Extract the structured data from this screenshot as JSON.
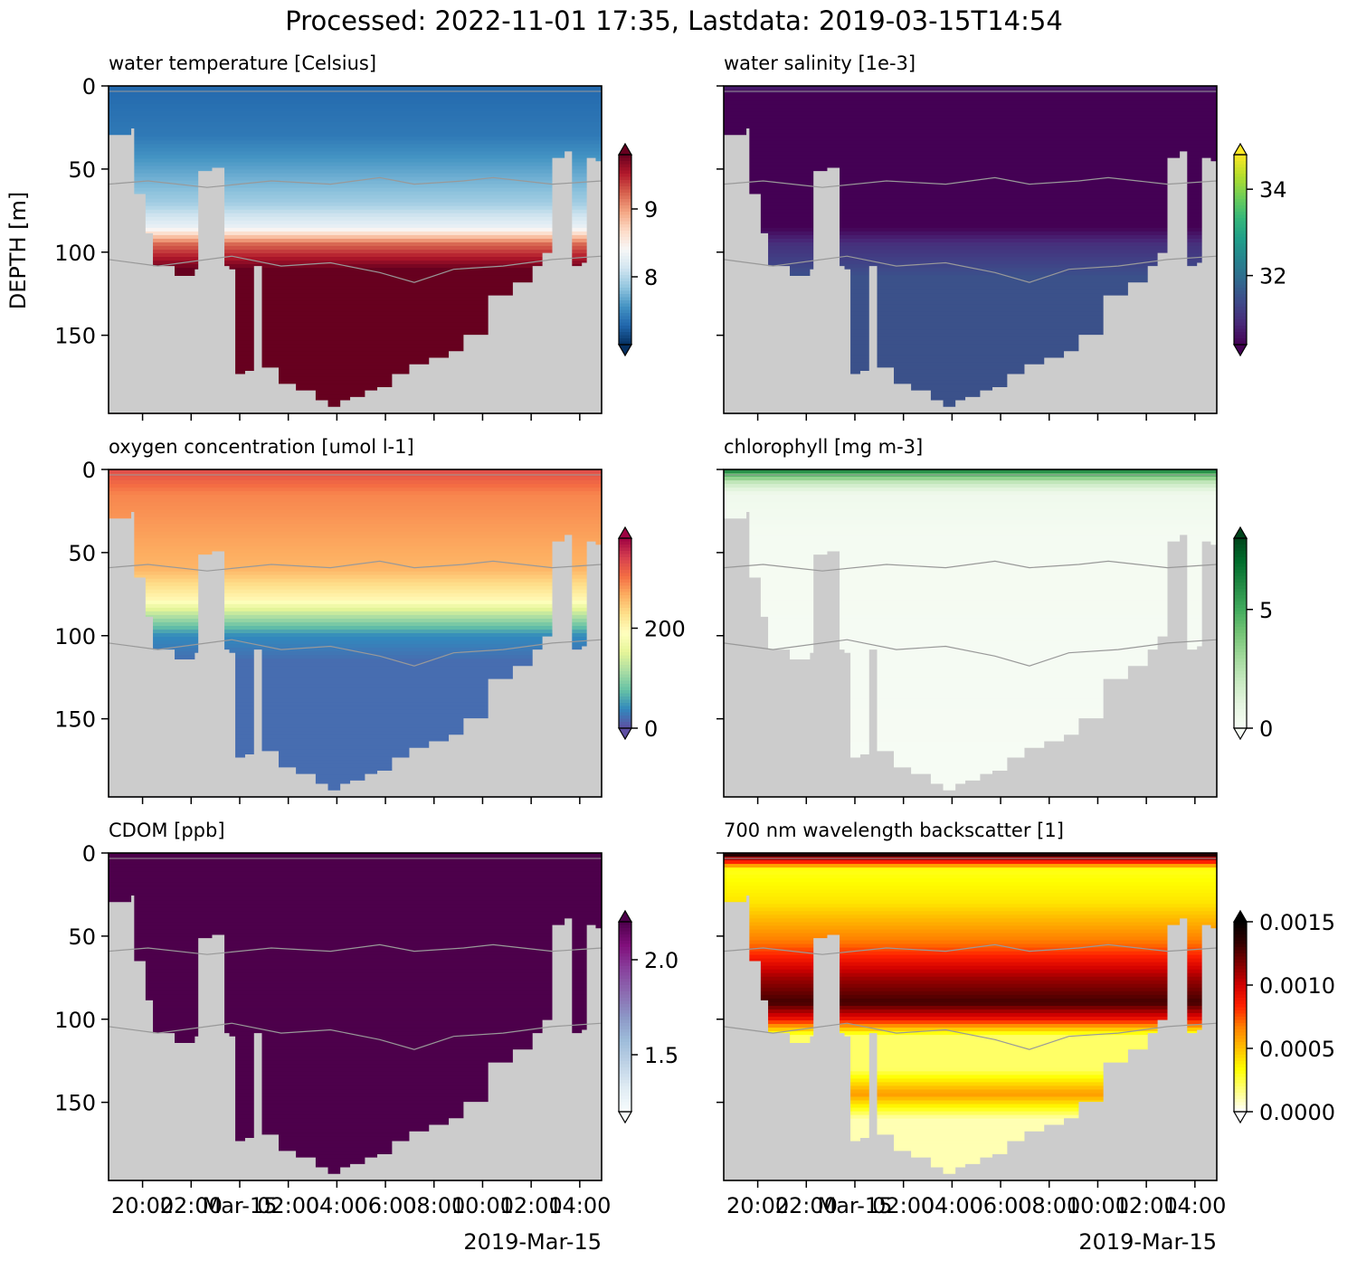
{
  "figure": {
    "suptitle": "Processed: 2022-11-01 17:35, Lastdata: 2019-03-15T14:54",
    "ylabel": "DEPTH [m]",
    "date_label": "2019-Mar-15"
  },
  "axes": {
    "depth_range": [
      0,
      197
    ],
    "depth_ticks": [
      0,
      50,
      100,
      150
    ],
    "time_range_hours": [
      18.6,
      38.9
    ],
    "time_ticks": [
      20,
      22,
      24,
      26,
      28,
      30,
      32,
      34,
      36,
      38
    ],
    "time_tick_labels": [
      "20:00",
      "22:00",
      "Mar-15",
      "02:00",
      "04:00",
      "06:00",
      "08:00",
      "10:00",
      "12:00",
      "14:00"
    ]
  },
  "colors": {
    "seafloor": "#cccccc",
    "contour": "#999999"
  },
  "chart_data": [
    {
      "type": "heatmap",
      "title": "water temperature [Celsius]",
      "variable": "water temperature",
      "units": "Celsius",
      "colormap": "RdBu_r",
      "clim": [
        7.0,
        9.8
      ],
      "colorbar_ticks": [
        8,
        9
      ],
      "colorbar_tick_labels": [
        "8",
        "9"
      ],
      "extend": "both",
      "profile": [
        [
          0,
          7.3
        ],
        [
          30,
          7.4
        ],
        [
          70,
          7.9
        ],
        [
          85,
          8.3
        ],
        [
          95,
          9.2
        ],
        [
          110,
          9.8
        ],
        [
          197,
          9.8
        ]
      ]
    },
    {
      "type": "heatmap",
      "title": "water salinity [1e-3]",
      "variable": "water salinity",
      "units": "1e-3",
      "colormap": "viridis",
      "clim": [
        30.4,
        34.8
      ],
      "colorbar_ticks": [
        32,
        34
      ],
      "colorbar_tick_labels": [
        "32",
        "34"
      ],
      "extend": "both",
      "profile": [
        [
          0,
          30.8
        ],
        [
          5,
          30.4
        ],
        [
          85,
          30.4
        ],
        [
          95,
          31.0
        ],
        [
          115,
          31.5
        ],
        [
          197,
          31.5
        ]
      ]
    },
    {
      "type": "heatmap",
      "title": "oxygen concentration [umol l-1]",
      "variable": "oxygen concentration",
      "units": "umol l-1",
      "colormap": "Spectral_r",
      "clim": [
        0,
        380
      ],
      "colorbar_ticks": [
        0,
        200
      ],
      "colorbar_tick_labels": [
        "0",
        "200"
      ],
      "extend": "both",
      "profile": [
        [
          0,
          330
        ],
        [
          15,
          290
        ],
        [
          60,
          260
        ],
        [
          78,
          200
        ],
        [
          88,
          120
        ],
        [
          100,
          40
        ],
        [
          115,
          20
        ],
        [
          197,
          20
        ]
      ]
    },
    {
      "type": "heatmap",
      "title": "chlorophyll [mg m-3]",
      "variable": "chlorophyll",
      "units": "mg m-3",
      "colormap": "Greens",
      "clim": [
        0,
        8
      ],
      "colorbar_ticks": [
        0,
        5
      ],
      "colorbar_tick_labels": [
        "0",
        "5"
      ],
      "extend": "both",
      "profile": [
        [
          0,
          6.5
        ],
        [
          4,
          4.0
        ],
        [
          8,
          2.0
        ],
        [
          15,
          0.4
        ],
        [
          40,
          0.15
        ],
        [
          197,
          0.05
        ]
      ]
    },
    {
      "type": "heatmap",
      "title": "CDOM [ppb]",
      "variable": "CDOM",
      "units": "ppb",
      "colormap": "BuPu",
      "clim": [
        1.2,
        2.2
      ],
      "colorbar_ticks": [
        1.5,
        2.0
      ],
      "colorbar_tick_labels": [
        "1.5",
        "2.0"
      ],
      "extend": "both",
      "profile": [
        [
          0,
          2.3
        ],
        [
          197,
          2.3
        ]
      ]
    },
    {
      "type": "heatmap",
      "title": "700 nm wavelength backscatter [1]",
      "variable": "700 nm wavelength backscatter",
      "units": "1",
      "colormap": "hot_r",
      "clim": [
        0.0,
        0.0015
      ],
      "colorbar_ticks": [
        0.0,
        0.0005,
        0.001,
        0.0015
      ],
      "colorbar_tick_labels": [
        "0.0000",
        "0.0005",
        "0.0010",
        "0.0015"
      ],
      "extend": "both",
      "profile": [
        [
          0,
          0.0015
        ],
        [
          4,
          0.001
        ],
        [
          10,
          0.0003
        ],
        [
          30,
          0.0004
        ],
        [
          55,
          0.0007
        ],
        [
          75,
          0.0011
        ],
        [
          90,
          0.0013
        ],
        [
          100,
          0.0009
        ],
        [
          110,
          0.0002
        ],
        [
          130,
          0.0002
        ],
        [
          145,
          0.0006
        ],
        [
          160,
          0.0001
        ],
        [
          197,
          0.0001
        ]
      ]
    }
  ]
}
